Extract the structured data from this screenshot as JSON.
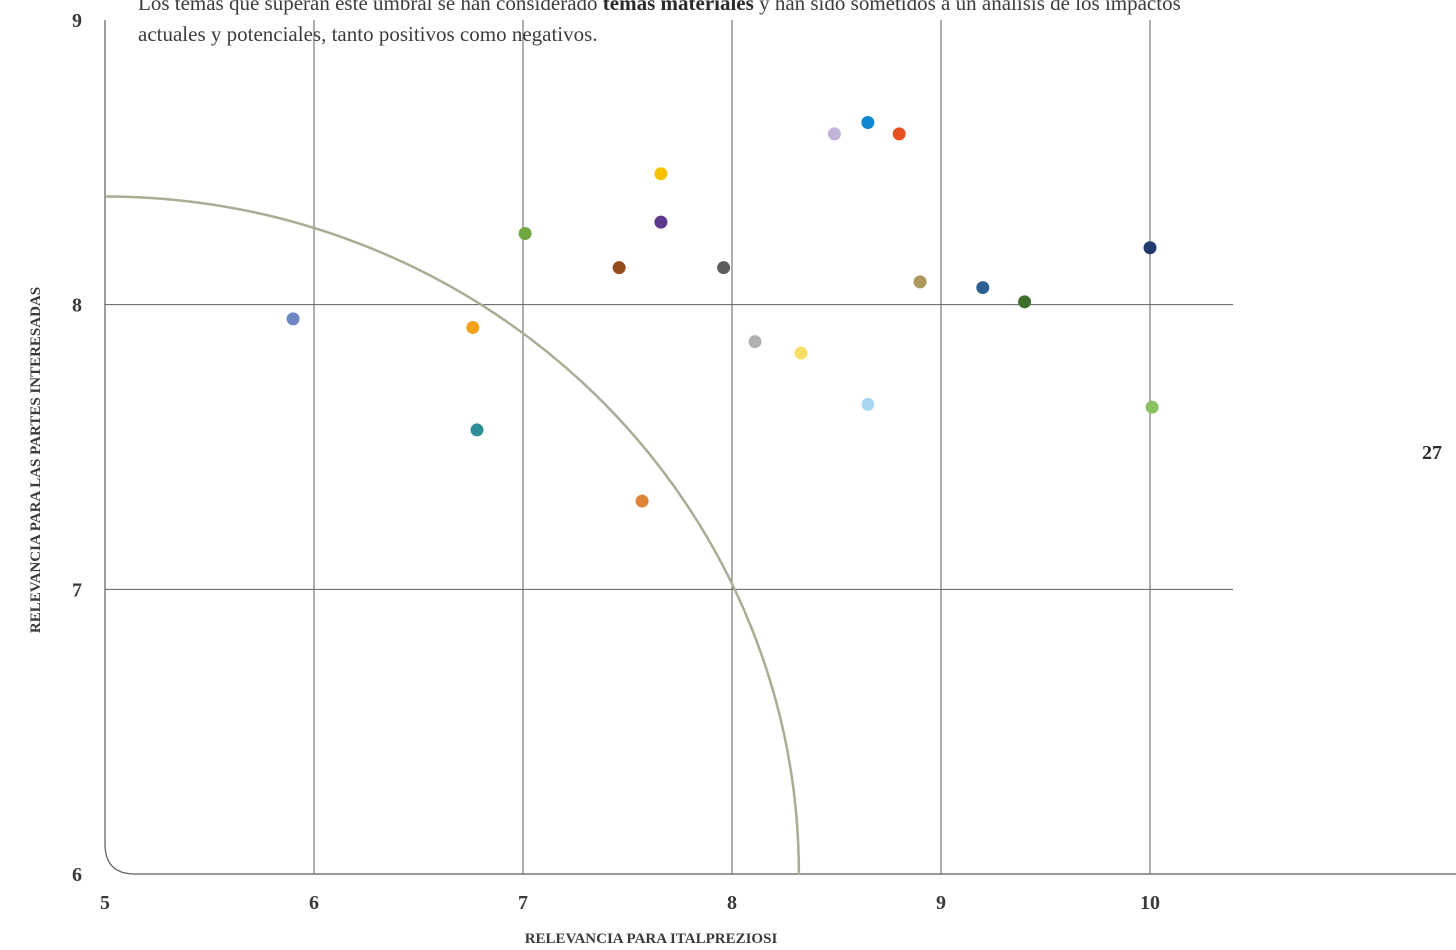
{
  "intro": {
    "line1_before": "Los temas que superan este umbral se han considerado ",
    "line1_bold": "temas materiales",
    "line1_after": " y han sido sometidos a un análisis de los impactos",
    "line2": "actuales y potenciales, tanto positivos como negativos."
  },
  "page_number": "27",
  "chart_data": {
    "type": "scatter",
    "title": "",
    "xlabel": "RELEVANCIA PARA ITALPREZIOSI",
    "ylabel": "RELEVANCIA PARA LAS PARTES INTERESADAS",
    "xlim": [
      5,
      10.4
    ],
    "ylim": [
      6,
      9
    ],
    "xticks": [
      5,
      6,
      7,
      8,
      9,
      10
    ],
    "yticks": [
      6,
      7,
      8,
      9
    ],
    "grid": true,
    "materiality_threshold": {
      "shape": "quarter-circle",
      "x_intercept": 8.32,
      "y_intercept": 8.38
    },
    "points": [
      {
        "x": 5.9,
        "y": 7.95,
        "color": "#6f86c3"
      },
      {
        "x": 6.76,
        "y": 7.92,
        "color": "#f3a21a"
      },
      {
        "x": 6.78,
        "y": 7.56,
        "color": "#2e8e98"
      },
      {
        "x": 7.01,
        "y": 8.25,
        "color": "#6fa843"
      },
      {
        "x": 7.46,
        "y": 8.13,
        "color": "#964b1c"
      },
      {
        "x": 7.57,
        "y": 7.31,
        "color": "#e08537"
      },
      {
        "x": 7.66,
        "y": 8.46,
        "color": "#f8c200"
      },
      {
        "x": 7.66,
        "y": 8.29,
        "color": "#5e3a8d"
      },
      {
        "x": 7.96,
        "y": 8.13,
        "color": "#5d5d5d"
      },
      {
        "x": 8.11,
        "y": 7.87,
        "color": "#b0b0b0"
      },
      {
        "x": 8.33,
        "y": 7.83,
        "color": "#f8de62"
      },
      {
        "x": 8.49,
        "y": 8.6,
        "color": "#c3b3da"
      },
      {
        "x": 8.65,
        "y": 8.64,
        "color": "#0f88d4"
      },
      {
        "x": 8.65,
        "y": 7.65,
        "color": "#a8d7f4"
      },
      {
        "x": 8.8,
        "y": 8.6,
        "color": "#e8501f"
      },
      {
        "x": 8.9,
        "y": 8.08,
        "color": "#ad975a"
      },
      {
        "x": 9.2,
        "y": 8.06,
        "color": "#2d5f92"
      },
      {
        "x": 9.4,
        "y": 8.01,
        "color": "#3f6d2b"
      },
      {
        "x": 10.0,
        "y": 8.2,
        "color": "#203a6b"
      },
      {
        "x": 10.01,
        "y": 7.64,
        "color": "#8bc061"
      }
    ],
    "colors": {
      "grid": "#5e5e5e",
      "threshold": "#a9ad93",
      "axis_text": "#3a3a3a"
    }
  }
}
